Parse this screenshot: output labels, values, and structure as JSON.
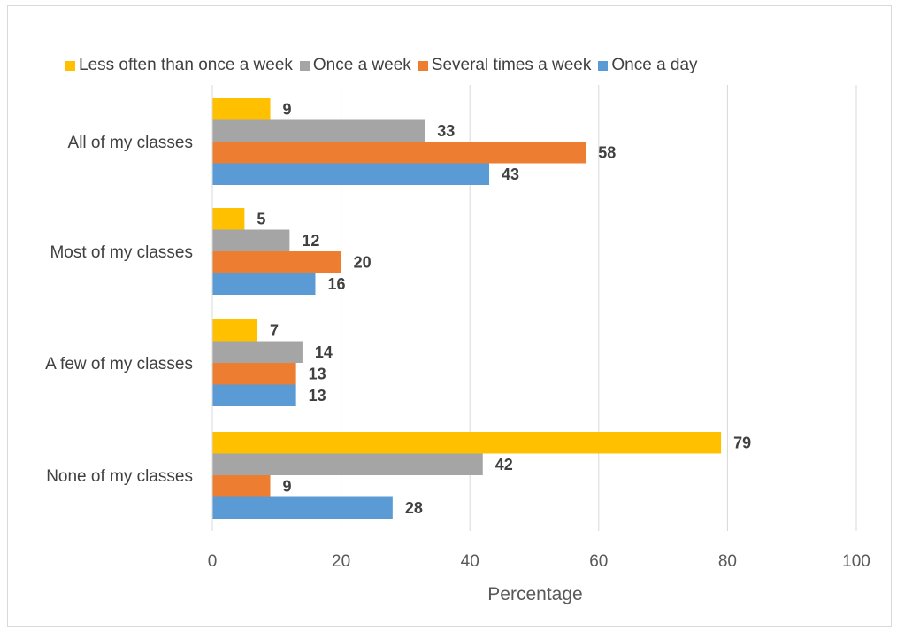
{
  "chart_data": {
    "type": "bar",
    "orientation": "horizontal",
    "categories": [
      "All of my classes",
      "Most of my classes",
      "A few of my classes",
      "None of my classes"
    ],
    "series": [
      {
        "name": "Less often than once a week",
        "color": "#FFC000",
        "values": [
          9,
          5,
          7,
          79
        ]
      },
      {
        "name": "Once a week",
        "color": "#A5A5A5",
        "values": [
          33,
          12,
          14,
          42
        ]
      },
      {
        "name": "Several times a week",
        "color": "#ED7D31",
        "values": [
          58,
          20,
          13,
          9
        ]
      },
      {
        "name": "Once a day",
        "color": "#5B9BD5",
        "values": [
          43,
          16,
          13,
          28
        ]
      }
    ],
    "title": "",
    "xlabel": "Percentage",
    "ylabel": "",
    "xlim": [
      0,
      100
    ],
    "xticks": [
      0,
      20,
      40,
      60,
      80,
      100
    ],
    "grid": true,
    "legend_position": "top",
    "data_labels": true
  }
}
